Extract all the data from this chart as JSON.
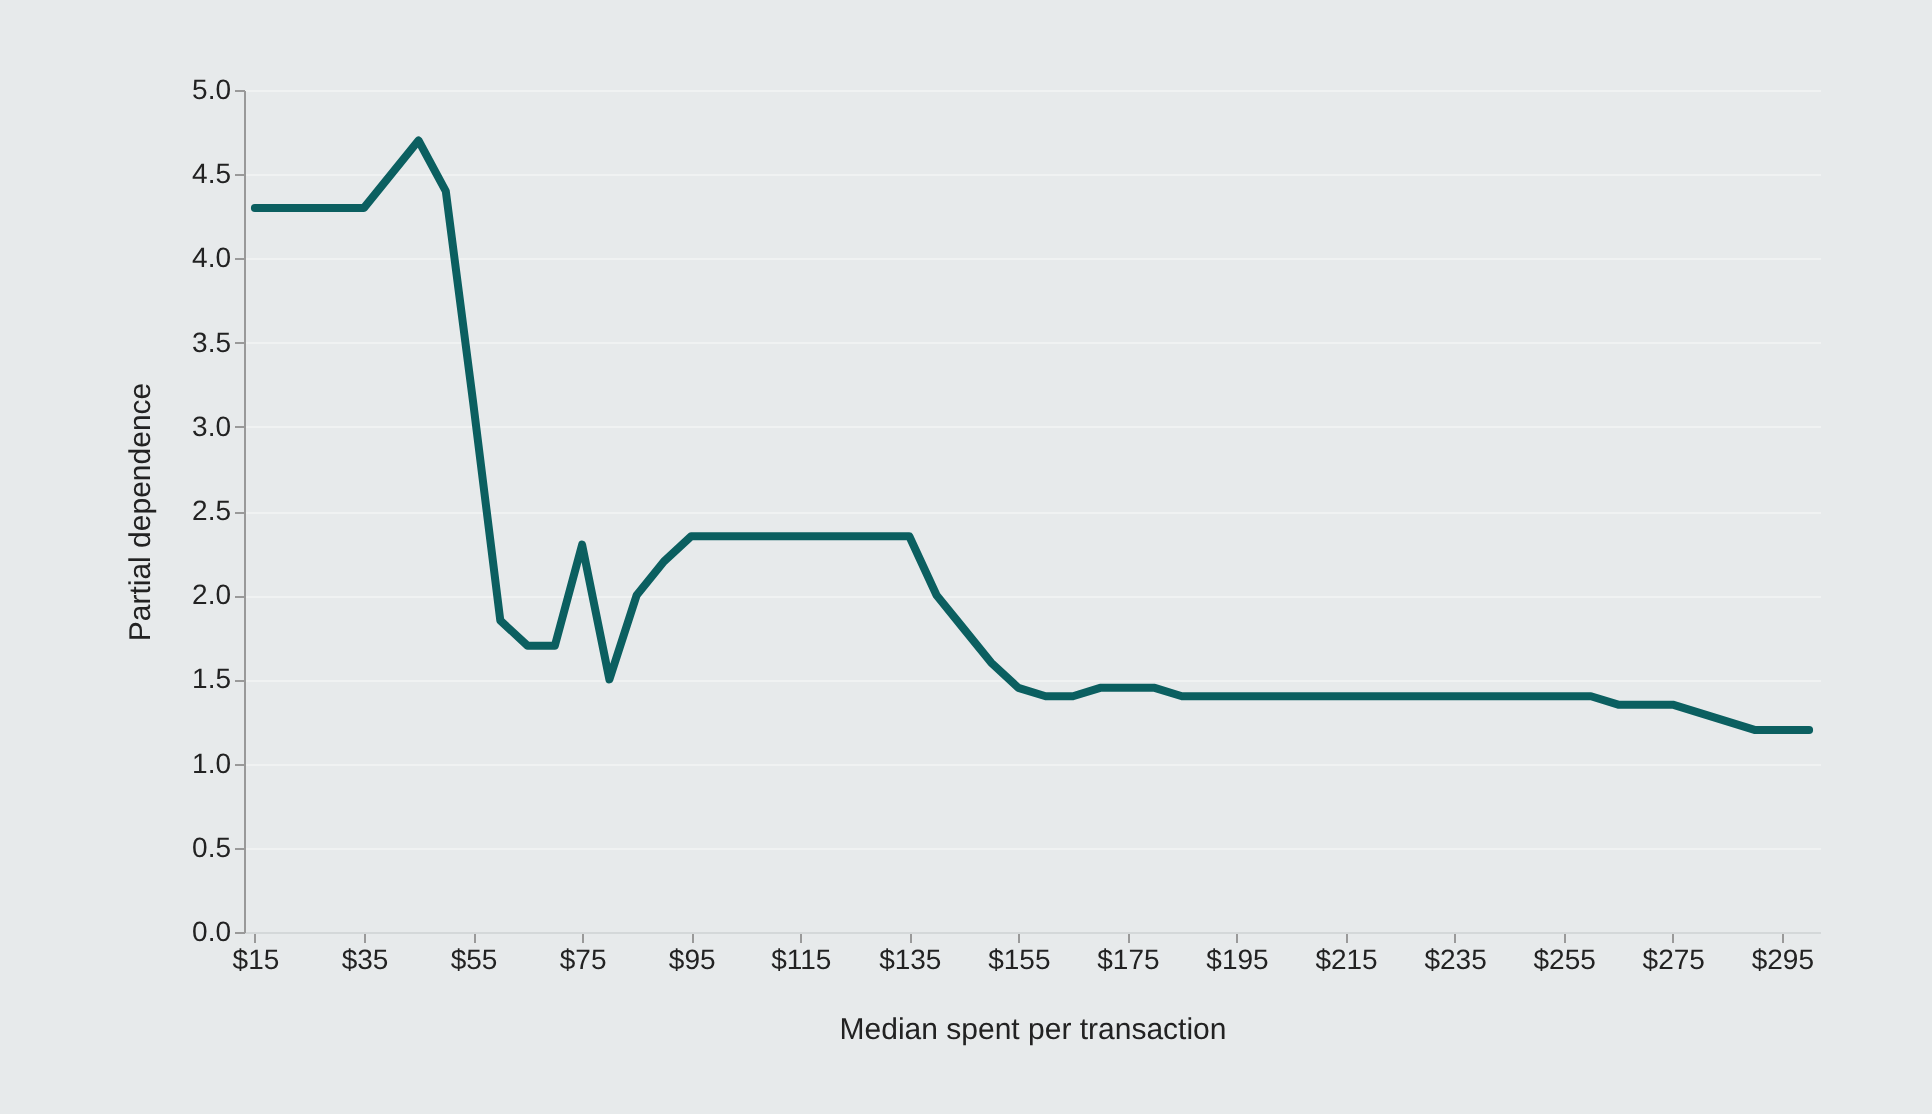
{
  "chart_data": {
    "type": "line",
    "xlabel": "Median spent per transaction",
    "ylabel": "Partial dependence",
    "x": [
      15,
      35,
      45,
      50,
      55,
      60,
      65,
      70,
      75,
      80,
      85,
      90,
      95,
      135,
      140,
      145,
      150,
      155,
      160,
      165,
      170,
      180,
      185,
      260,
      265,
      275,
      290,
      300
    ],
    "series": [
      {
        "color": "#0b5f60",
        "values": [
          4.3,
          4.3,
          4.7,
          4.4,
          3.15,
          1.85,
          1.7,
          1.7,
          2.3,
          1.5,
          2.0,
          2.2,
          2.35,
          2.35,
          2.0,
          1.8,
          1.6,
          1.45,
          1.4,
          1.4,
          1.45,
          1.45,
          1.4,
          1.4,
          1.35,
          1.35,
          1.2,
          1.2
        ]
      }
    ],
    "xlim": [
      13,
      302
    ],
    "xticks": [
      {
        "value": 15,
        "label": "$15"
      },
      {
        "value": 35,
        "label": "$35"
      },
      {
        "value": 55,
        "label": "$55"
      },
      {
        "value": 75,
        "label": "$75"
      },
      {
        "value": 95,
        "label": "$95"
      },
      {
        "value": 115,
        "label": "$115"
      },
      {
        "value": 135,
        "label": "$135"
      },
      {
        "value": 155,
        "label": "$155"
      },
      {
        "value": 175,
        "label": "$175"
      },
      {
        "value": 195,
        "label": "$195"
      },
      {
        "value": 215,
        "label": "$215"
      },
      {
        "value": 235,
        "label": "$235"
      },
      {
        "value": 255,
        "label": "$255"
      },
      {
        "value": 275,
        "label": "$275"
      },
      {
        "value": 295,
        "label": "$295"
      }
    ],
    "ylim": [
      0,
      5
    ],
    "yticks": [
      {
        "value": 0,
        "label": "0.0"
      },
      {
        "value": 0.5,
        "label": "0.5"
      },
      {
        "value": 1,
        "label": "1.0"
      },
      {
        "value": 1.5,
        "label": "1.5"
      },
      {
        "value": 2,
        "label": "2.0"
      },
      {
        "value": 2.5,
        "label": "2.5"
      },
      {
        "value": 3,
        "label": "3.0"
      },
      {
        "value": 3.5,
        "label": "3.5"
      },
      {
        "value": 4,
        "label": "4.0"
      },
      {
        "value": 4.5,
        "label": "4.5"
      },
      {
        "value": 5,
        "label": "5.0"
      }
    ],
    "grid": "y",
    "marker": "none",
    "line_style": "solid",
    "legend": false
  }
}
